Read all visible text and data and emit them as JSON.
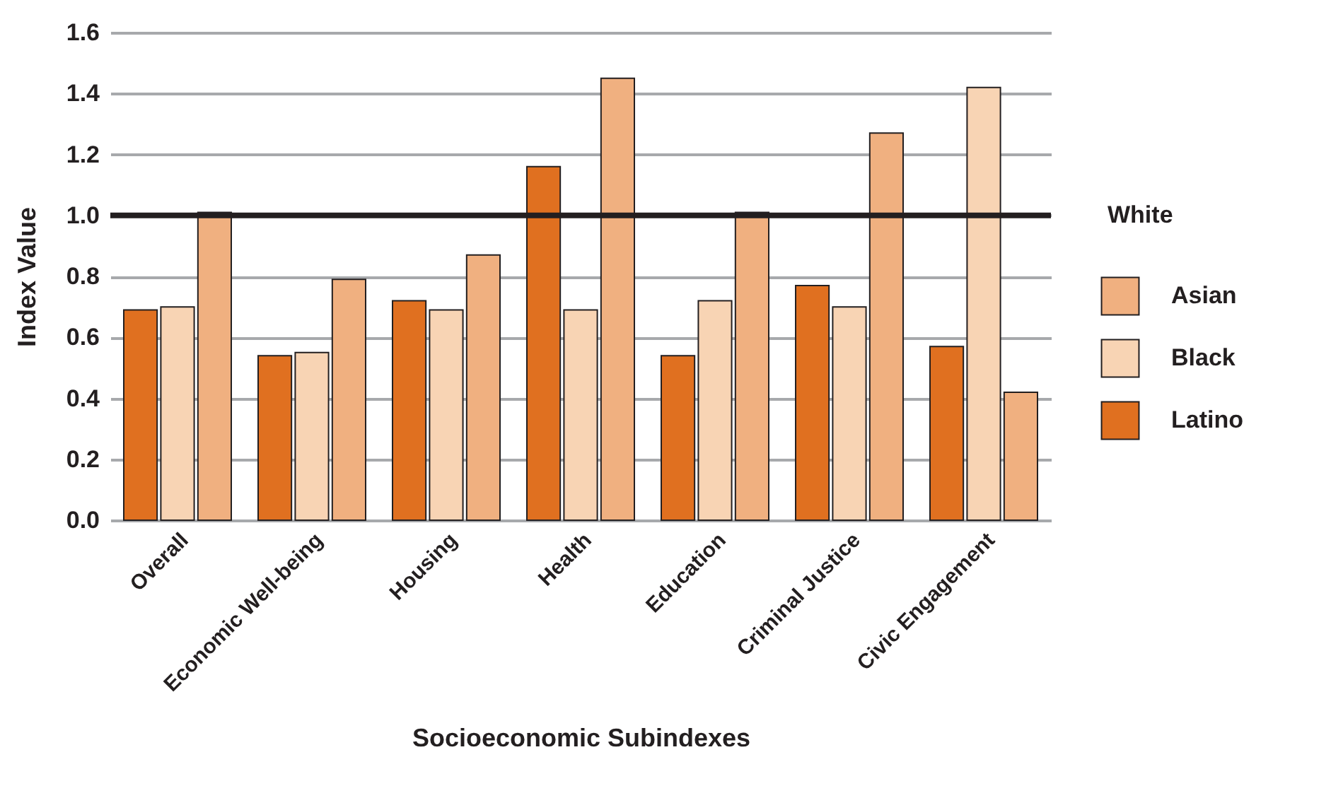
{
  "chart_data": {
    "type": "bar",
    "xlabel": "Socioeconomic Subindexes",
    "ylabel": "Index Value",
    "categories": [
      "Overall",
      "Economic Well-being",
      "Housing",
      "Health",
      "Education",
      "Criminal Justice",
      "Civic Engagement"
    ],
    "series": [
      {
        "name": "Latino",
        "color": "#e07020",
        "values": [
          0.69,
          0.54,
          0.72,
          1.16,
          0.54,
          0.77,
          0.57
        ]
      },
      {
        "name": "Black",
        "color": "#f8d4b4",
        "values": [
          0.7,
          0.55,
          0.69,
          0.69,
          0.72,
          0.7,
          1.42
        ]
      },
      {
        "name": "Asian",
        "color": "#f0b080",
        "values": [
          1.01,
          0.79,
          0.87,
          1.45,
          1.01,
          1.27,
          0.42
        ]
      }
    ],
    "ylim": [
      0,
      1.6
    ],
    "yticks": [
      {
        "value": 0,
        "label": "0.0"
      },
      0.2,
      0.4,
      0.6,
      0.8,
      {
        "value": 1,
        "label": "1.0"
      },
      1.2,
      1.4,
      1.6
    ],
    "ref_lines": [
      {
        "axis": "y",
        "value": 1,
        "label": "White",
        "color": "#231f20"
      }
    ],
    "grid": "y",
    "legend": "right"
  }
}
